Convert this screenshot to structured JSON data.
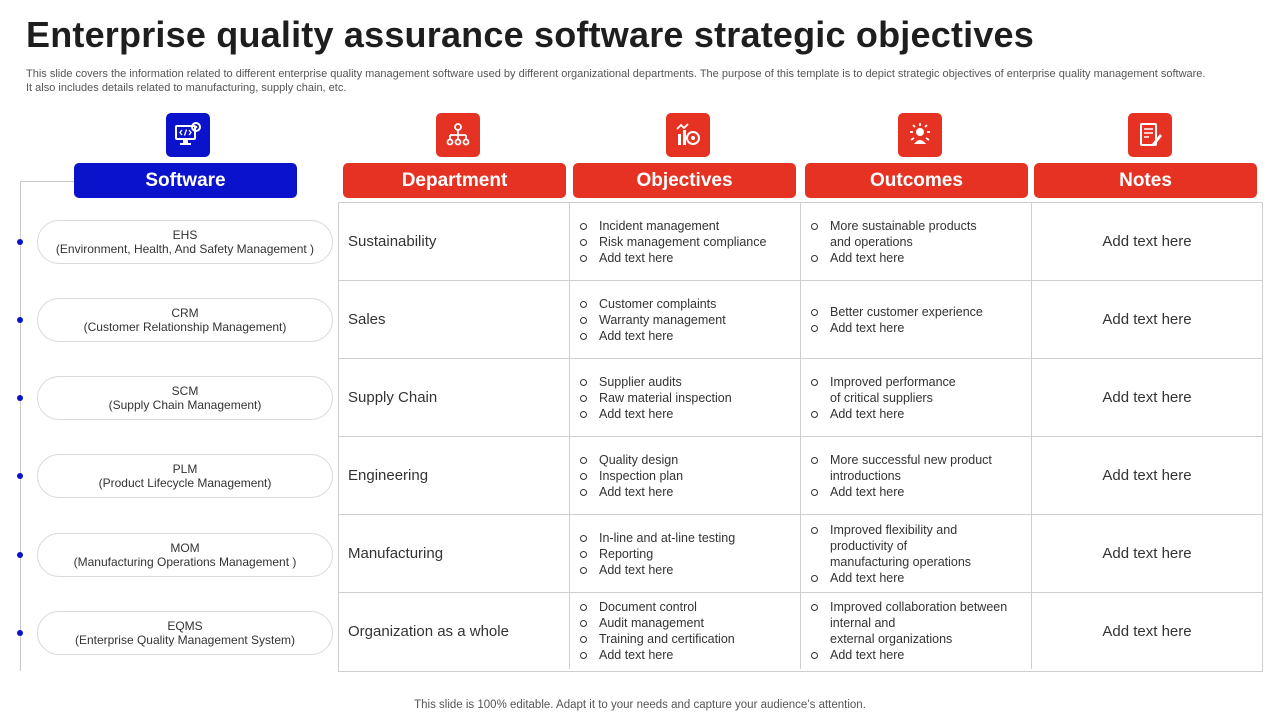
{
  "title": "Enterprise quality assurance software strategic objectives",
  "subtitle": "This slide covers the information related to different enterprise quality management software used by different organizational departments. The purpose of this template is to depict strategic objectives of enterprise quality management software. It also includes details related to manufacturing, supply chain, etc.",
  "footer": "This slide is 100% editable. Adapt it to your needs and capture your audience’s attention.",
  "colors": {
    "accent_red": "#e63222",
    "accent_blue": "#0a12cc",
    "grid_line": "#cfcfcf"
  },
  "columns": [
    {
      "label": "Software",
      "icon": "software-code-gear-icon"
    },
    {
      "label": "Department",
      "icon": "hierarchy-icon"
    },
    {
      "label": "Objectives",
      "icon": "target-chart-icon"
    },
    {
      "label": "Outcomes",
      "icon": "team-idea-icon"
    },
    {
      "label": "Notes",
      "icon": "document-pen-icon"
    }
  ],
  "software": [
    {
      "abbr": "EHS",
      "full": "(Environment, Health, And Safety Management )"
    },
    {
      "abbr": "CRM",
      "full": "(Customer Relationship Management)"
    },
    {
      "abbr": "SCM",
      "full": "(Supply Chain Management)"
    },
    {
      "abbr": "PLM",
      "full": "(Product Lifecycle Management)"
    },
    {
      "abbr": "MOM",
      "full": "(Manufacturing Operations Management )"
    },
    {
      "abbr": "EQMS",
      "full": "(Enterprise Quality Management System)"
    }
  ],
  "rows": [
    {
      "department": "Sustainability",
      "objectives": [
        "Incident management",
        "Risk management  compliance",
        "Add text here"
      ],
      "outcomes": [
        [
          "More sustainable products",
          "and operations"
        ],
        [
          "Add text here"
        ]
      ],
      "notes": "Add text here"
    },
    {
      "department": "Sales",
      "objectives": [
        "Customer complaints",
        "Warranty management",
        "Add text here"
      ],
      "outcomes": [
        [
          "Better customer experience"
        ],
        [
          "Add text here"
        ]
      ],
      "notes": "Add text here"
    },
    {
      "department": "Supply Chain",
      "objectives": [
        "Supplier audits",
        "Raw material inspection",
        "Add text here"
      ],
      "outcomes": [
        [
          "Improved  performance",
          "of critical suppliers"
        ],
        [
          "Add text here"
        ]
      ],
      "notes": "Add text here"
    },
    {
      "department": "Engineering",
      "objectives": [
        "Quality design",
        "Inspection plan",
        "Add text here"
      ],
      "outcomes": [
        [
          "More successful new product",
          "introductions"
        ],
        [
          "Add text here"
        ]
      ],
      "notes": "Add text here"
    },
    {
      "department": "Manufacturing",
      "objectives": [
        "In-line  and at-line testing",
        "Reporting",
        "Add text here"
      ],
      "outcomes": [
        [
          "Improved  flexibility and",
          "productivity  of",
          "manufacturing  operations"
        ],
        [
          "Add text here"
        ]
      ],
      "notes": "Add text here"
    },
    {
      "department": "Organization as a whole",
      "objectives": [
        "Document control",
        "Audit management",
        "Training  and certification",
        "Add text here"
      ],
      "outcomes": [
        [
          "Improved  collaboration between",
          "internal and",
          "external organizations"
        ],
        [
          "Add text here"
        ]
      ],
      "notes": "Add text here"
    }
  ]
}
